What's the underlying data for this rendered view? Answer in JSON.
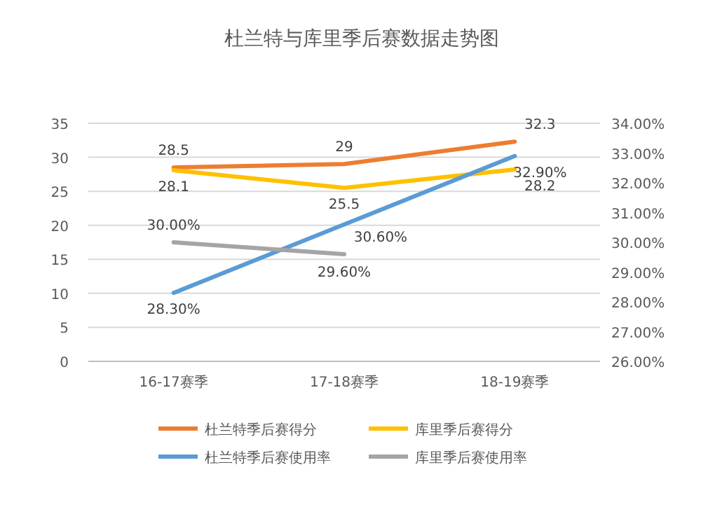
{
  "chart_data": {
    "type": "line",
    "title": "杜兰特与库里季后赛数据走势图",
    "categories": [
      "16-17赛季",
      "17-18赛季",
      "18-19赛季"
    ],
    "ylim": [
      0,
      35
    ],
    "yticks": [
      0,
      5,
      10,
      15,
      20,
      25,
      30,
      35
    ],
    "y2lim": [
      26,
      34
    ],
    "y2ticks": [
      {
        "value": 26,
        "label": "26.00%"
      },
      {
        "value": 27,
        "label": "27.00%"
      },
      {
        "value": 28,
        "label": "28.00%"
      },
      {
        "value": 29,
        "label": "29.00%"
      },
      {
        "value": 30,
        "label": "30.00%"
      },
      {
        "value": 31,
        "label": "31.00%"
      },
      {
        "value": 32,
        "label": "32.00%"
      },
      {
        "value": 33,
        "label": "33.00%"
      },
      {
        "value": 34,
        "label": "34.00%"
      }
    ],
    "grid": "y",
    "legend": "bottom",
    "marker": "none",
    "line_style": "solid",
    "series": [
      {
        "name": "杜兰特季后赛得分",
        "color": "#ed7d31",
        "values": [
          28.5,
          29,
          32.3
        ],
        "value_labels": [
          "28.5",
          "29",
          "32.3"
        ]
      },
      {
        "name": "库里季后赛得分",
        "color": "#ffc000",
        "values": [
          28.1,
          25.5,
          28.2
        ],
        "value_labels": [
          "28.1",
          "25.5",
          "28.2"
        ]
      },
      {
        "name": "杜兰特季后赛使用率",
        "color": "#5b9bd5",
        "axis": "y2",
        "values": [
          28.3,
          30.6,
          32.9
        ],
        "value_labels": [
          "28.30%",
          "30.60%",
          "32.90%"
        ]
      },
      {
        "name": "库里季后赛使用率",
        "color": "#a5a5a5",
        "axis": "y2",
        "values": [
          30.0,
          29.6,
          null
        ],
        "value_labels": [
          "30.00%",
          "29.60%",
          null
        ]
      }
    ]
  }
}
